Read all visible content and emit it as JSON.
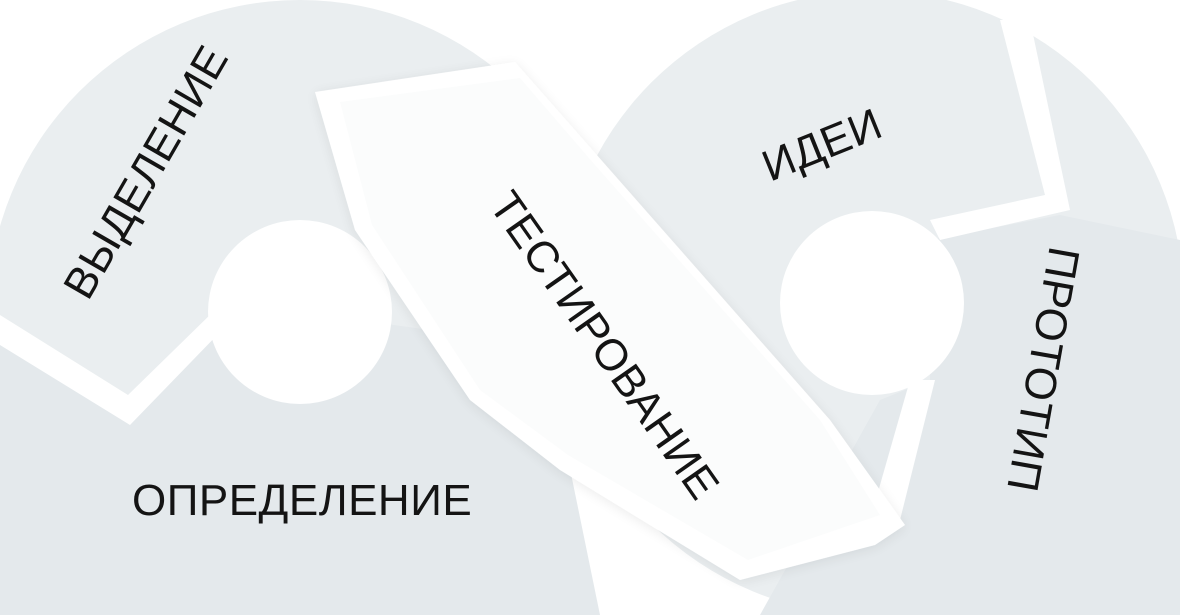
{
  "diagram": {
    "title": "",
    "stages": {
      "emphasize": "ВЫДЕЛЕНИЕ",
      "define": "ОПРЕДЕЛЕНИЕ",
      "test": "ТЕСТИРОВАНИЕ",
      "ideate": "ИДЕИ",
      "prototype": "ПРОТОТИП"
    }
  },
  "colors": {
    "background": "#ffffff",
    "segment_light": "#e9edf0",
    "segment_mid": "#e2e7ea",
    "band": "#ffffff",
    "text": "#141414"
  }
}
